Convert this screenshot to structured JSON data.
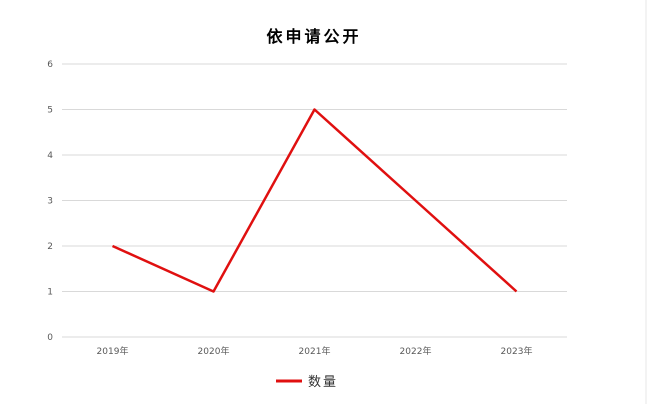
{
  "chart_data": {
    "type": "line",
    "title": "依申请公开",
    "categories": [
      "2019年",
      "2020年",
      "2021年",
      "2022年",
      "2023年"
    ],
    "series": [
      {
        "name": "数量",
        "values": [
          2,
          1,
          5,
          3,
          1
        ],
        "color": "#e01010"
      }
    ],
    "ylim": [
      0,
      6
    ],
    "yticks": [
      0,
      1,
      2,
      3,
      4,
      5,
      6
    ],
    "grid": true,
    "legend": "bottom"
  }
}
